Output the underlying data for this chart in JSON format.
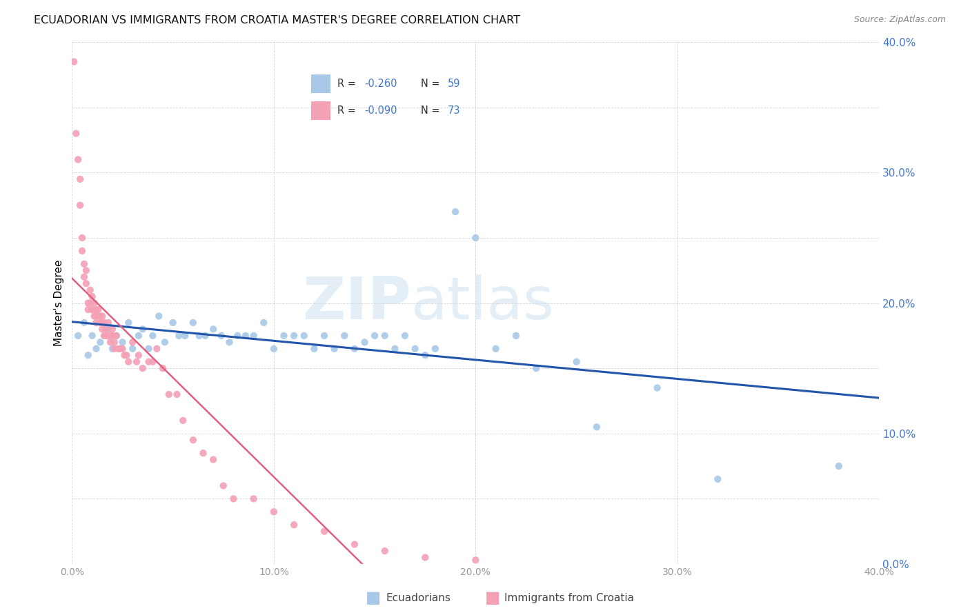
{
  "title": "ECUADORIAN VS IMMIGRANTS FROM CROATIA MASTER'S DEGREE CORRELATION CHART",
  "source": "Source: ZipAtlas.com",
  "ylabel": "Master's Degree",
  "legend_label1": "Ecuadorians",
  "legend_label2": "Immigrants from Croatia",
  "legend_r1": "-0.260",
  "legend_n1": "59",
  "legend_r2": "-0.090",
  "legend_n2": "73",
  "watermark_zip": "ZIP",
  "watermark_atlas": "atlas",
  "color_blue": "#a8c8e8",
  "color_pink": "#f4a0b5",
  "line_blue": "#2255aa",
  "line_pink": "#e06080",
  "text_blue": "#4477cc",
  "xlim": [
    0.0,
    0.4
  ],
  "ylim": [
    0.0,
    0.4
  ],
  "blue_scatter_x": [
    0.003,
    0.006,
    0.008,
    0.01,
    0.012,
    0.014,
    0.016,
    0.018,
    0.02,
    0.022,
    0.025,
    0.028,
    0.03,
    0.033,
    0.035,
    0.038,
    0.04,
    0.043,
    0.046,
    0.05,
    0.053,
    0.056,
    0.06,
    0.063,
    0.066,
    0.07,
    0.074,
    0.078,
    0.082,
    0.086,
    0.09,
    0.095,
    0.1,
    0.105,
    0.11,
    0.115,
    0.12,
    0.125,
    0.13,
    0.135,
    0.14,
    0.145,
    0.15,
    0.155,
    0.16,
    0.165,
    0.17,
    0.175,
    0.18,
    0.19,
    0.2,
    0.21,
    0.22,
    0.23,
    0.25,
    0.26,
    0.29,
    0.32,
    0.38
  ],
  "blue_scatter_y": [
    0.175,
    0.185,
    0.16,
    0.175,
    0.165,
    0.17,
    0.175,
    0.18,
    0.165,
    0.175,
    0.17,
    0.185,
    0.165,
    0.175,
    0.18,
    0.165,
    0.175,
    0.19,
    0.17,
    0.185,
    0.175,
    0.175,
    0.185,
    0.175,
    0.175,
    0.18,
    0.175,
    0.17,
    0.175,
    0.175,
    0.175,
    0.185,
    0.165,
    0.175,
    0.175,
    0.175,
    0.165,
    0.175,
    0.165,
    0.175,
    0.165,
    0.17,
    0.175,
    0.175,
    0.165,
    0.175,
    0.165,
    0.16,
    0.165,
    0.27,
    0.25,
    0.165,
    0.175,
    0.15,
    0.155,
    0.105,
    0.135,
    0.065,
    0.075
  ],
  "pink_scatter_x": [
    0.001,
    0.002,
    0.003,
    0.004,
    0.004,
    0.005,
    0.005,
    0.006,
    0.006,
    0.007,
    0.007,
    0.008,
    0.008,
    0.009,
    0.009,
    0.01,
    0.01,
    0.01,
    0.011,
    0.011,
    0.012,
    0.012,
    0.012,
    0.013,
    0.013,
    0.014,
    0.014,
    0.015,
    0.015,
    0.015,
    0.016,
    0.016,
    0.017,
    0.017,
    0.018,
    0.018,
    0.019,
    0.019,
    0.02,
    0.02,
    0.021,
    0.021,
    0.022,
    0.023,
    0.024,
    0.025,
    0.026,
    0.027,
    0.028,
    0.03,
    0.032,
    0.033,
    0.035,
    0.038,
    0.04,
    0.042,
    0.045,
    0.048,
    0.052,
    0.055,
    0.06,
    0.065,
    0.07,
    0.075,
    0.08,
    0.09,
    0.1,
    0.11,
    0.125,
    0.14,
    0.155,
    0.175,
    0.2
  ],
  "pink_scatter_y": [
    0.385,
    0.33,
    0.31,
    0.295,
    0.275,
    0.25,
    0.24,
    0.23,
    0.22,
    0.225,
    0.215,
    0.2,
    0.195,
    0.21,
    0.2,
    0.195,
    0.205,
    0.195,
    0.19,
    0.2,
    0.195,
    0.19,
    0.185,
    0.195,
    0.19,
    0.185,
    0.19,
    0.18,
    0.185,
    0.19,
    0.175,
    0.185,
    0.175,
    0.18,
    0.175,
    0.185,
    0.175,
    0.17,
    0.175,
    0.18,
    0.165,
    0.17,
    0.175,
    0.165,
    0.165,
    0.165,
    0.16,
    0.16,
    0.155,
    0.17,
    0.155,
    0.16,
    0.15,
    0.155,
    0.155,
    0.165,
    0.15,
    0.13,
    0.13,
    0.11,
    0.095,
    0.085,
    0.08,
    0.06,
    0.05,
    0.05,
    0.04,
    0.03,
    0.025,
    0.015,
    0.01,
    0.005,
    0.003
  ]
}
